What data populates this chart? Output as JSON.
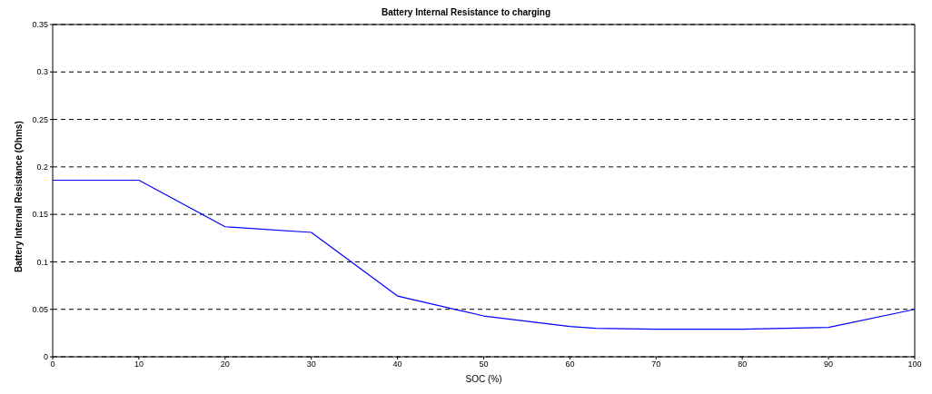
{
  "chart_data": {
    "type": "line",
    "title": "Battery Internal Resistance to charging",
    "xlabel": "SOC (%)",
    "ylabel": "Battery Internal Resistance (Ohms)",
    "x": [
      0,
      10,
      20,
      30,
      40,
      50,
      60,
      63,
      70,
      80,
      90,
      100
    ],
    "series": [
      {
        "color": "#0000ff",
        "values": [
          0.186,
          0.186,
          0.137,
          0.131,
          0.064,
          0.043,
          0.032,
          0.03,
          0.029,
          0.029,
          0.031,
          0.05
        ]
      }
    ],
    "xlim": [
      0,
      100
    ],
    "xticks": [
      0,
      10,
      20,
      30,
      40,
      50,
      60,
      70,
      80,
      90,
      100
    ],
    "ylim": [
      0,
      0.35
    ],
    "yticks": [
      0,
      0.05,
      0.1,
      0.15,
      0.2,
      0.25,
      0.3,
      0.35
    ],
    "grid": "y",
    "legend": false,
    "marker": "none",
    "line_style": "solid"
  }
}
